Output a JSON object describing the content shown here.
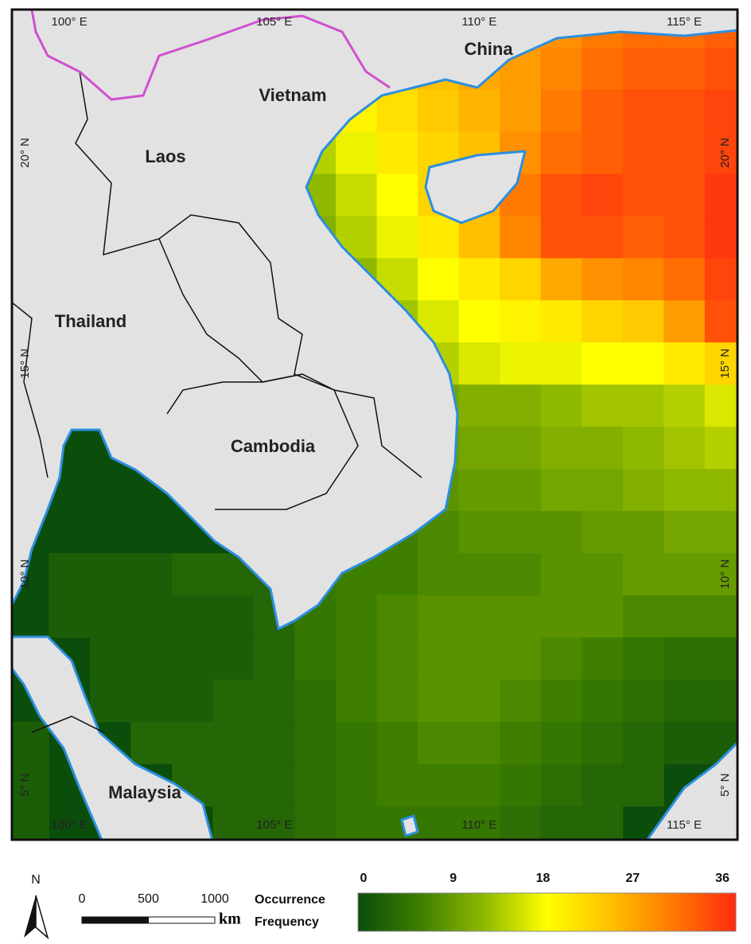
{
  "map": {
    "xlim": [
      98.6,
      116.3
    ],
    "ylim": [
      3.7,
      23.4
    ],
    "xticks": [
      {
        "value": 100,
        "label": "100° E"
      },
      {
        "value": 105,
        "label": "105° E"
      },
      {
        "value": 110,
        "label": "110° E"
      },
      {
        "value": 115,
        "label": "115° E"
      }
    ],
    "yticks": [
      {
        "value": 20,
        "label": "20° N"
      },
      {
        "value": 15,
        "label": "15° N"
      },
      {
        "value": 10,
        "label": "10° N"
      },
      {
        "value": 5,
        "label": "5° N"
      }
    ],
    "places": [
      "China",
      "Vietnam",
      "Laos",
      "Thailand",
      "Cambodia",
      "Malaysia"
    ],
    "heatmap": {
      "lons": [
        99,
        100,
        101,
        102,
        103,
        104,
        105,
        106,
        107,
        108,
        109,
        110,
        111,
        112,
        113,
        114,
        115,
        116
      ],
      "lats": [
        23,
        22,
        21,
        20,
        19,
        18,
        17,
        16,
        15,
        14,
        13,
        12,
        11,
        10,
        9,
        8,
        7,
        6,
        5,
        4
      ],
      "values": [
        [
          null,
          null,
          null,
          null,
          null,
          null,
          null,
          null,
          null,
          null,
          null,
          null,
          26,
          28,
          30,
          31,
          31,
          32
        ],
        [
          null,
          null,
          null,
          null,
          null,
          null,
          null,
          null,
          22,
          23,
          24,
          26,
          27,
          29,
          31,
          32,
          32,
          33
        ],
        [
          null,
          null,
          null,
          null,
          null,
          null,
          null,
          16,
          19,
          21,
          23,
          25,
          27,
          30,
          32,
          33,
          33,
          34
        ],
        [
          null,
          null,
          null,
          null,
          null,
          null,
          12,
          14,
          17,
          20,
          22,
          24,
          28,
          31,
          32,
          33,
          33,
          34
        ],
        [
          null,
          null,
          null,
          null,
          null,
          null,
          10,
          12,
          15,
          18,
          22,
          25,
          30,
          33,
          34,
          33,
          33,
          35
        ],
        [
          null,
          null,
          null,
          null,
          null,
          null,
          null,
          11,
          14,
          17,
          20,
          24,
          29,
          33,
          33,
          32,
          33,
          35
        ],
        [
          null,
          null,
          null,
          null,
          null,
          null,
          null,
          9,
          12,
          15,
          18,
          20,
          22,
          26,
          28,
          29,
          31,
          34
        ],
        [
          null,
          null,
          null,
          null,
          null,
          null,
          null,
          null,
          11,
          13,
          16,
          18,
          19,
          20,
          22,
          23,
          27,
          33
        ],
        [
          null,
          null,
          null,
          null,
          null,
          null,
          null,
          null,
          null,
          11,
          14,
          16,
          17,
          17,
          18,
          18,
          20,
          22
        ],
        [
          null,
          null,
          null,
          null,
          null,
          null,
          null,
          null,
          null,
          null,
          10,
          11,
          11,
          12,
          13,
          13,
          14,
          16
        ],
        [
          null,
          null,
          null,
          null,
          null,
          null,
          null,
          null,
          null,
          null,
          9,
          10,
          10,
          11,
          11,
          12,
          13,
          14
        ],
        [
          null,
          null,
          null,
          null,
          null,
          null,
          null,
          null,
          null,
          null,
          8,
          9,
          9,
          10,
          10,
          11,
          12,
          12
        ],
        [
          null,
          null,
          null,
          null,
          null,
          null,
          2,
          4,
          5,
          6,
          7,
          8,
          8,
          8,
          9,
          9,
          10,
          10
        ],
        [
          null,
          2,
          2,
          2,
          3,
          3,
          3,
          5,
          6,
          6,
          7,
          7,
          7,
          8,
          8,
          9,
          9,
          9
        ],
        [
          null,
          2,
          2,
          2,
          2,
          2,
          3,
          5,
          6,
          7,
          8,
          8,
          8,
          8,
          8,
          7,
          7,
          7
        ],
        [
          null,
          null,
          2,
          2,
          2,
          2,
          3,
          5,
          6,
          7,
          8,
          8,
          8,
          7,
          6,
          5,
          4,
          4
        ],
        [
          null,
          null,
          2,
          2,
          2,
          3,
          3,
          4,
          6,
          7,
          8,
          8,
          7,
          6,
          5,
          4,
          3,
          3
        ],
        [
          2,
          null,
          null,
          3,
          3,
          3,
          3,
          4,
          5,
          6,
          7,
          7,
          6,
          5,
          4,
          3,
          2,
          2
        ],
        [
          2,
          null,
          null,
          null,
          3,
          3,
          3,
          4,
          5,
          6,
          6,
          6,
          5,
          4,
          3,
          3,
          null,
          null
        ],
        [
          2,
          null,
          null,
          null,
          null,
          3,
          3,
          4,
          5,
          5,
          5,
          5,
          4,
          3,
          3,
          null,
          null,
          null
        ]
      ]
    }
  },
  "legend": {
    "north": "N",
    "scale_bar": {
      "ticks": [
        0,
        500,
        1000
      ],
      "unit": "km"
    },
    "title": [
      "Occurrence",
      "Frequency"
    ],
    "clim": [
      0,
      36
    ],
    "ticks": [
      0,
      9,
      18,
      27,
      36
    ],
    "colors": [
      "#0b4d0b",
      "#3f7f00",
      "#8fb800",
      "#ffff00",
      "#ffc000",
      "#ff7a00",
      "#ff2a10"
    ]
  }
}
